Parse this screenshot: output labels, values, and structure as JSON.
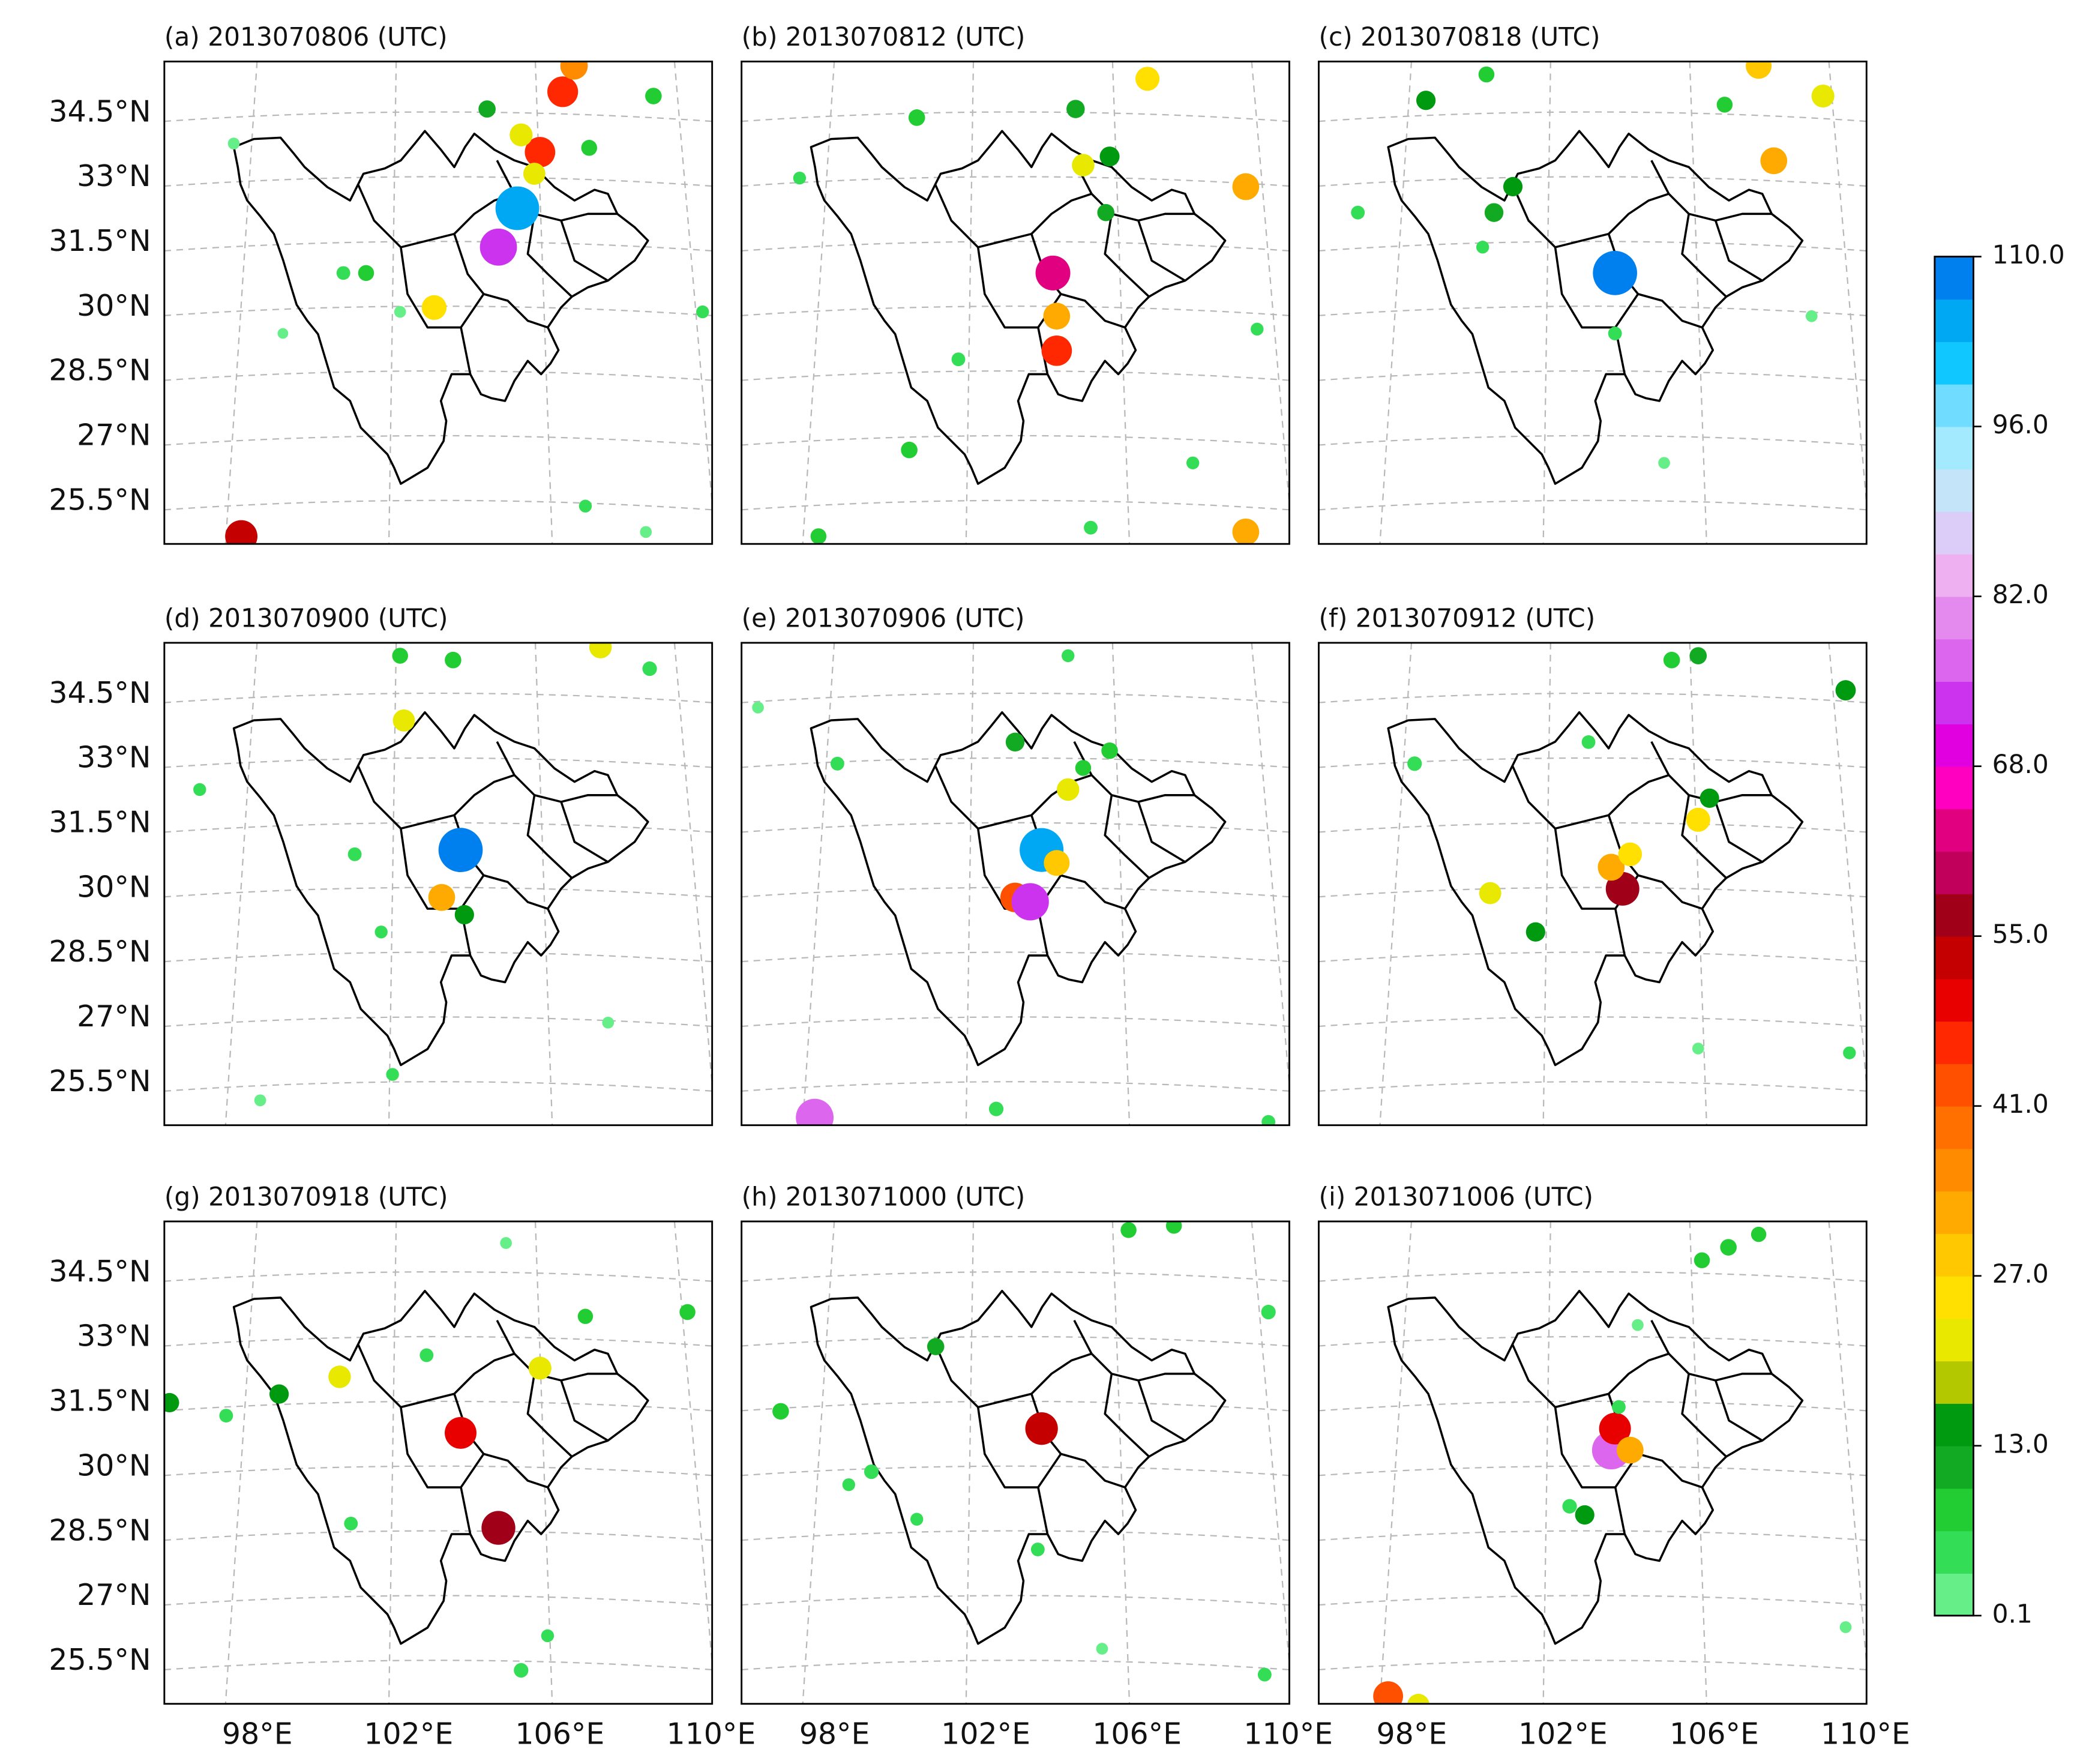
{
  "panels": [
    {
      "title": "(a) 2013070806 (UTC)",
      "points": [
        [
          105.3,
          32.3,
          105
        ],
        [
          104.8,
          31.4,
          72
        ],
        [
          103.1,
          30.0,
          27
        ],
        [
          105.9,
          33.6,
          45
        ],
        [
          106.5,
          35.0,
          46
        ],
        [
          106.8,
          35.6,
          35
        ],
        [
          105.4,
          34.0,
          22
        ],
        [
          105.75,
          33.1,
          20
        ],
        [
          98.0,
          24.7,
          52
        ],
        [
          101.3,
          30.8,
          8
        ],
        [
          100.7,
          30.8,
          5
        ],
        [
          107.2,
          33.7,
          8
        ],
        [
          108.9,
          34.9,
          9
        ],
        [
          104.5,
          34.6,
          10
        ],
        [
          110.2,
          29.9,
          4
        ],
        [
          107.1,
          25.4,
          4
        ],
        [
          108.7,
          24.8,
          3
        ],
        [
          97.8,
          33.8,
          3
        ],
        [
          102.2,
          29.9,
          3
        ],
        [
          99.1,
          29.4,
          2
        ]
      ]
    },
    {
      "title": "(b) 2013070812 (UTC)",
      "points": [
        [
          104.2,
          30.8,
          62
        ],
        [
          104.3,
          29.8,
          33
        ],
        [
          104.3,
          29.0,
          45
        ],
        [
          109.3,
          32.8,
          33
        ],
        [
          109.3,
          24.8,
          33
        ],
        [
          106.7,
          35.3,
          25
        ],
        [
          105.0,
          33.3,
          21
        ],
        [
          105.7,
          33.5,
          15
        ],
        [
          100.6,
          34.4,
          9
        ],
        [
          100.4,
          26.7,
          9
        ],
        [
          98.0,
          24.7,
          8
        ],
        [
          104.8,
          34.6,
          12
        ],
        [
          105.6,
          32.2,
          10
        ],
        [
          101.7,
          28.8,
          5
        ],
        [
          97.5,
          33.0,
          4
        ],
        [
          109.6,
          29.5,
          4
        ],
        [
          105.2,
          24.9,
          5
        ],
        [
          107.9,
          26.4,
          4
        ]
      ]
    },
    {
      "title": "(c) 2013070818 (UTC)",
      "points": [
        [
          103.8,
          30.8,
          108
        ],
        [
          108.0,
          33.4,
          33
        ],
        [
          107.6,
          35.6,
          30
        ],
        [
          109.3,
          34.9,
          22
        ],
        [
          98.8,
          34.8,
          14
        ],
        [
          101.1,
          32.8,
          14
        ],
        [
          100.6,
          32.2,
          13
        ],
        [
          100.4,
          35.4,
          8
        ],
        [
          106.7,
          34.7,
          8
        ],
        [
          97.0,
          32.2,
          5
        ],
        [
          103.8,
          29.4,
          5
        ],
        [
          109.0,
          29.8,
          3
        ],
        [
          100.3,
          31.4,
          4
        ],
        [
          105.1,
          26.4,
          3
        ]
      ]
    },
    {
      "title": "(d) 2013070900 (UTC)",
      "points": [
        [
          103.8,
          30.9,
          108
        ],
        [
          103.3,
          29.8,
          33
        ],
        [
          102.3,
          33.9,
          20
        ],
        [
          103.9,
          29.4,
          14
        ],
        [
          102.2,
          35.4,
          8
        ],
        [
          103.6,
          35.3,
          9
        ],
        [
          108.8,
          35.1,
          6
        ],
        [
          96.9,
          32.3,
          4
        ],
        [
          101.0,
          30.8,
          5
        ],
        [
          101.7,
          29.0,
          4
        ],
        [
          107.5,
          35.6,
          21
        ],
        [
          102.0,
          25.7,
          4
        ],
        [
          107.7,
          26.9,
          3
        ],
        [
          98.5,
          25.1,
          3
        ]
      ]
    },
    {
      "title": "(e) 2013070906 (UTC)",
      "points": [
        [
          103.9,
          30.9,
          106
        ],
        [
          103.2,
          29.8,
          42
        ],
        [
          103.6,
          29.7,
          73
        ],
        [
          104.3,
          30.6,
          30
        ],
        [
          104.6,
          32.3,
          21
        ],
        [
          97.9,
          24.7,
          75
        ],
        [
          103.2,
          33.4,
          13
        ],
        [
          105.7,
          33.2,
          9
        ],
        [
          105.0,
          32.8,
          8
        ],
        [
          98.5,
          32.9,
          5
        ],
        [
          102.7,
          24.9,
          6
        ],
        [
          96.4,
          34.2,
          3
        ],
        [
          104.6,
          35.4,
          4
        ],
        [
          109.9,
          24.6,
          5
        ]
      ]
    },
    {
      "title": "(f) 2013070912 (UTC)",
      "points": [
        [
          104.0,
          30.0,
          57
        ],
        [
          103.7,
          30.5,
          33
        ],
        [
          104.2,
          30.8,
          24
        ],
        [
          106.0,
          31.6,
          25
        ],
        [
          106.3,
          32.1,
          14
        ],
        [
          100.5,
          29.9,
          20
        ],
        [
          101.7,
          29.0,
          14
        ],
        [
          109.9,
          34.6,
          16
        ],
        [
          105.3,
          35.3,
          9
        ],
        [
          106.0,
          35.4,
          10
        ],
        [
          98.5,
          32.9,
          6
        ],
        [
          103.1,
          33.4,
          5
        ],
        [
          110.0,
          26.2,
          4
        ],
        [
          106.0,
          26.3,
          3
        ]
      ]
    },
    {
      "title": "(g) 2013070918 (UTC)",
      "points": [
        [
          103.8,
          30.8,
          50
        ],
        [
          104.8,
          28.6,
          58
        ],
        [
          105.9,
          32.3,
          22
        ],
        [
          100.6,
          32.1,
          21
        ],
        [
          99.0,
          31.7,
          14
        ],
        [
          96.1,
          31.5,
          14
        ],
        [
          109.8,
          33.6,
          8
        ],
        [
          107.1,
          33.5,
          7
        ],
        [
          105.4,
          25.3,
          6
        ],
        [
          97.6,
          31.2,
          5
        ],
        [
          102.9,
          32.6,
          5
        ],
        [
          106.1,
          26.1,
          4
        ],
        [
          100.9,
          28.7,
          5
        ],
        [
          105.0,
          35.2,
          3
        ]
      ]
    },
    {
      "title": "(h) 2013071000 (UTC)",
      "points": [
        [
          103.9,
          30.9,
          53
        ],
        [
          101.1,
          32.8,
          10
        ],
        [
          97.0,
          31.3,
          9
        ],
        [
          99.4,
          29.9,
          6
        ],
        [
          107.4,
          35.6,
          8
        ],
        [
          106.2,
          35.5,
          8
        ],
        [
          109.9,
          33.6,
          6
        ],
        [
          103.8,
          28.1,
          5
        ],
        [
          109.8,
          25.2,
          5
        ],
        [
          98.8,
          29.6,
          4
        ],
        [
          100.6,
          28.8,
          4
        ],
        [
          105.5,
          25.8,
          3
        ]
      ]
    },
    {
      "title": "(i) 2013071006 (UTC)",
      "points": [
        [
          103.7,
          30.4,
          78
        ],
        [
          103.8,
          30.9,
          50
        ],
        [
          104.2,
          30.4,
          33
        ],
        [
          97.8,
          24.7,
          43
        ],
        [
          98.6,
          24.5,
          20
        ],
        [
          103.0,
          28.9,
          14
        ],
        [
          106.8,
          35.1,
          9
        ],
        [
          106.1,
          34.8,
          8
        ],
        [
          107.6,
          35.4,
          7
        ],
        [
          102.6,
          29.1,
          6
        ],
        [
          103.9,
          31.4,
          5
        ],
        [
          109.9,
          26.3,
          3
        ],
        [
          104.4,
          33.3,
          3
        ]
      ]
    }
  ],
  "lat_ticks": [
    {
      "value": 34.5,
      "label": "34.5°N"
    },
    {
      "value": 33,
      "label": "33°N"
    },
    {
      "value": 31.5,
      "label": "31.5°N"
    },
    {
      "value": 30,
      "label": "30°N"
    },
    {
      "value": 28.5,
      "label": "28.5°N"
    },
    {
      "value": 27,
      "label": "27°N"
    },
    {
      "value": 25.5,
      "label": "25.5°N"
    }
  ],
  "lon_ticks": [
    {
      "value": 98,
      "label": "98°E"
    },
    {
      "value": 102,
      "label": "102°E"
    },
    {
      "value": 106,
      "label": "106°E"
    },
    {
      "value": 110,
      "label": "110°E"
    }
  ],
  "colorbar": {
    "ticks": [
      {
        "value": 0.1,
        "label": "0.1"
      },
      {
        "value": 13,
        "label": "13.0"
      },
      {
        "value": 27,
        "label": "27.0"
      },
      {
        "value": 41,
        "label": "41.0"
      },
      {
        "value": 55,
        "label": "55.0"
      },
      {
        "value": 68,
        "label": "68.0"
      },
      {
        "value": 82,
        "label": "82.0"
      },
      {
        "value": 96,
        "label": "96.0"
      },
      {
        "value": 110,
        "label": "110.0"
      }
    ],
    "colors": [
      "#66ee88",
      "#33dd55",
      "#22cc33",
      "#11aa22",
      "#009a10",
      "#b4c800",
      "#e8e800",
      "#ffe000",
      "#ffc800",
      "#ffaa00",
      "#ff8c00",
      "#ff7000",
      "#ff5000",
      "#ff2800",
      "#e80000",
      "#c40000",
      "#a00018",
      "#c0005a",
      "#e00080",
      "#ff00c0",
      "#e000e0",
      "#cc33ee",
      "#dd66ee",
      "#e48aee",
      "#eeb0f0",
      "#dcccf8",
      "#c4e4fa",
      "#a4eaff",
      "#70dcff",
      "#10c8ff",
      "#00a8f4",
      "#0080ee"
    ]
  }
}
